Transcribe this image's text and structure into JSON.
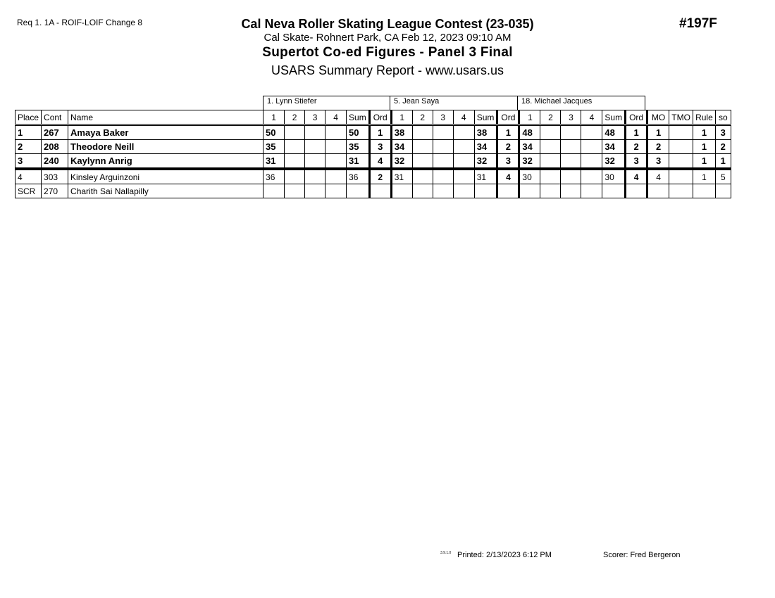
{
  "header": {
    "request": "Req  1.  1A - ROIF-LOIF Change 8",
    "event_number": "#197F",
    "title": "Cal Neva Roller Skating League Contest (23-035)",
    "venue": "Cal Skate- Rohnert Park, CA  Feb 12, 2023  09:10 AM",
    "event": "Supertot Co-ed Figures - Panel 3 Final",
    "report": "USARS Summary Report - www.usars.us"
  },
  "judges": [
    "1.  Lynn Stiefer",
    "5.  Jean Saya",
    "18.  Michael Jacques"
  ],
  "columns": [
    "Place",
    "Cont",
    "Name",
    "1",
    "2",
    "3",
    "4",
    "Sum",
    "Ord",
    "1",
    "2",
    "3",
    "4",
    "Sum",
    "Ord",
    "1",
    "2",
    "3",
    "4",
    "Sum",
    "Ord",
    "MO",
    "TMO",
    "Rule",
    "so"
  ],
  "rows": [
    {
      "bold": true,
      "cells": [
        "1",
        "267",
        "Amaya Baker",
        "50",
        "",
        "",
        "",
        "50",
        "1",
        "38",
        "",
        "",
        "",
        "38",
        "1",
        "48",
        "",
        "",
        "",
        "48",
        "1",
        "1",
        "",
        "1",
        "3"
      ]
    },
    {
      "bold": true,
      "cells": [
        "2",
        "208",
        "Theodore Neill",
        "35",
        "",
        "",
        "",
        "35",
        "3",
        "34",
        "",
        "",
        "",
        "34",
        "2",
        "34",
        "",
        "",
        "",
        "34",
        "2",
        "2",
        "",
        "1",
        "2"
      ]
    },
    {
      "bold": true,
      "cells": [
        "3",
        "240",
        "Kaylynn Anrig",
        "31",
        "",
        "",
        "",
        "31",
        "4",
        "32",
        "",
        "",
        "",
        "32",
        "3",
        "32",
        "",
        "",
        "",
        "32",
        "3",
        "3",
        "",
        "1",
        "1"
      ]
    },
    {
      "bold": false,
      "cells": [
        "4",
        "303",
        "Kinsley Arguinzoni",
        "36",
        "",
        "",
        "",
        "36",
        "2",
        "31",
        "",
        "",
        "",
        "31",
        "4",
        "30",
        "",
        "",
        "",
        "30",
        "4",
        "4",
        "",
        "1",
        "5"
      ]
    },
    {
      "bold": false,
      "cells": [
        "SCR",
        "270",
        "Charith Sai Nallapilly",
        "",
        "",
        "",
        "",
        "",
        "",
        "",
        "",
        "",
        "",
        "",
        "",
        "",
        "",
        "",
        "",
        "",
        "",
        "",
        "",
        "",
        ""
      ]
    }
  ],
  "footer": {
    "version": "3.9.1.0",
    "printed": "Printed:  2/13/2023  6:12 PM",
    "scorer": "Scorer:   Fred Bergeron"
  }
}
